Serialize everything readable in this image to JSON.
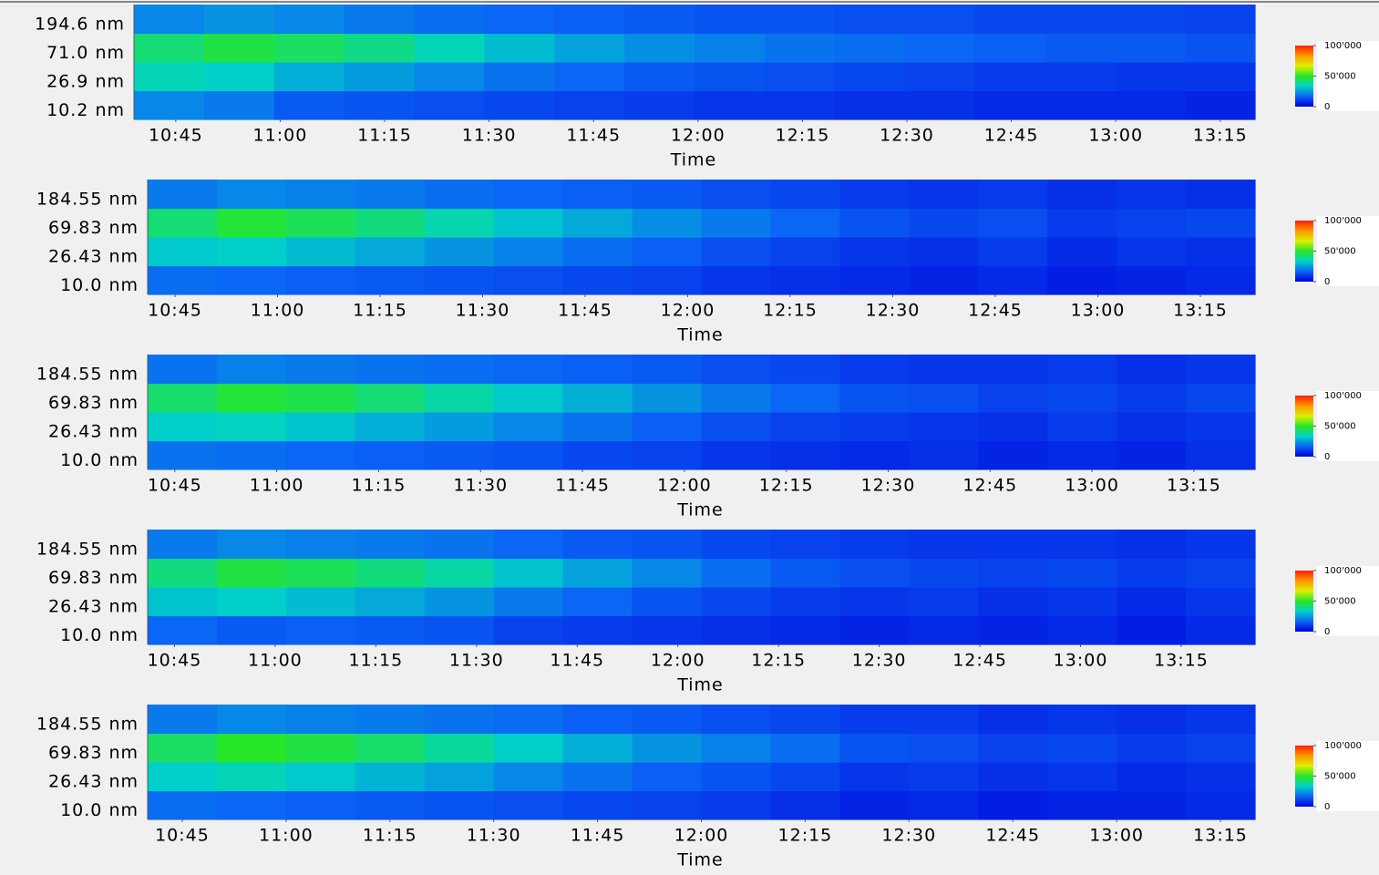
{
  "chart_data": [
    {
      "type": "heatmap",
      "xlabel": "Time",
      "xlim": [
        "10:39",
        "13:20"
      ],
      "xticks": [
        "10:45",
        "11:00",
        "11:15",
        "11:30",
        "11:45",
        "12:00",
        "12:15",
        "12:30",
        "12:45",
        "13:00",
        "13:15"
      ],
      "categories": [
        "10.2 nm",
        "26.9 nm",
        "71.0 nm",
        "194.6 nm"
      ],
      "values": [
        [
          22000,
          20000,
          15000,
          14000,
          13000,
          12000,
          11000,
          10000,
          9000,
          9000,
          8000,
          8000,
          7000,
          7000,
          7000,
          6000
        ],
        [
          35000,
          33000,
          28000,
          25000,
          22000,
          19000,
          17000,
          15000,
          14000,
          13000,
          12000,
          11000,
          10000,
          10000,
          9000,
          9000
        ],
        [
          42000,
          47000,
          44000,
          40000,
          35000,
          30000,
          26000,
          23000,
          21000,
          19000,
          18000,
          17000,
          16000,
          15000,
          15000,
          14000
        ],
        [
          22000,
          24000,
          22000,
          20000,
          18000,
          17000,
          16000,
          15000,
          14000,
          14000,
          13000,
          13000,
          12000,
          12000,
          12000,
          11000
        ]
      ],
      "clim": [
        0,
        100000
      ],
      "cticks": [
        {
          "value": 100000,
          "label": "100'000"
        },
        {
          "value": 50000,
          "label": "50'000"
        },
        0
      ],
      "colormap": [
        "#0000dc",
        "#0a64f5",
        "#00d2c8",
        "#28e628",
        "#dcf000",
        "#ff9600",
        "#ff1e00"
      ]
    },
    {
      "type": "heatmap",
      "xlabel": "Time",
      "xlim": [
        "10:41",
        "13:23"
      ],
      "xticks": [
        "10:45",
        "11:00",
        "11:15",
        "11:30",
        "11:45",
        "12:00",
        "12:15",
        "12:30",
        "12:45",
        "13:00",
        "13:15"
      ],
      "categories": [
        "10.0 nm",
        "26.43 nm",
        "69.83 nm",
        "184.55 nm"
      ],
      "values": [
        [
          18000,
          17000,
          16000,
          15000,
          14000,
          13000,
          12000,
          11000,
          9000,
          8000,
          7000,
          6000,
          7000,
          5000,
          6000,
          7000
        ],
        [
          32000,
          33000,
          30000,
          27000,
          24000,
          21000,
          18000,
          16000,
          13000,
          11000,
          9000,
          8000,
          10000,
          7000,
          9000,
          8000
        ],
        [
          42000,
          48000,
          45000,
          41000,
          36000,
          31000,
          27000,
          23000,
          20000,
          17000,
          14000,
          12000,
          13000,
          10000,
          11000,
          12000
        ],
        [
          20000,
          22000,
          21000,
          20000,
          18000,
          17000,
          16000,
          15000,
          13000,
          12000,
          10000,
          9000,
          10000,
          8000,
          9000,
          8000
        ]
      ],
      "clim": [
        0,
        100000
      ],
      "cticks": [
        {
          "value": 100000,
          "label": "100'000"
        },
        {
          "value": 50000,
          "label": "50'000"
        },
        0
      ],
      "colormap": [
        "#0000dc",
        "#0a64f5",
        "#00d2c8",
        "#28e628",
        "#dcf000",
        "#ff9600",
        "#ff1e00"
      ]
    },
    {
      "type": "heatmap",
      "xlabel": "Time",
      "xlim": [
        "10:41",
        "13:24"
      ],
      "xticks": [
        "10:45",
        "11:00",
        "11:15",
        "11:30",
        "11:45",
        "12:00",
        "12:15",
        "12:30",
        "12:45",
        "13:00",
        "13:15"
      ],
      "categories": [
        "10.0 nm",
        "26.43 nm",
        "69.83 nm",
        "184.55 nm"
      ],
      "values": [
        [
          19000,
          18000,
          17000,
          16000,
          15000,
          14000,
          12000,
          11000,
          9000,
          8000,
          7000,
          8000,
          6000,
          7000,
          6000,
          8000
        ],
        [
          33000,
          34000,
          31000,
          28000,
          25000,
          22000,
          19000,
          16000,
          13000,
          11000,
          10000,
          9000,
          8000,
          10000,
          8000,
          9000
        ],
        [
          43000,
          48000,
          46000,
          42000,
          37000,
          32000,
          28000,
          24000,
          20000,
          17000,
          14000,
          13000,
          11000,
          12000,
          10000,
          12000
        ],
        [
          19000,
          21000,
          20000,
          19000,
          18000,
          17000,
          16000,
          15000,
          13000,
          12000,
          10000,
          9000,
          9000,
          10000,
          8000,
          9000
        ]
      ],
      "clim": [
        0,
        100000
      ],
      "cticks": [
        {
          "value": 100000,
          "label": "100'000"
        },
        {
          "value": 50000,
          "label": "50'000"
        },
        0
      ],
      "colormap": [
        "#0000dc",
        "#0a64f5",
        "#00d2c8",
        "#28e628",
        "#dcf000",
        "#ff9600",
        "#ff1e00"
      ]
    },
    {
      "type": "heatmap",
      "xlabel": "Time",
      "xlim": [
        "10:41",
        "13:26"
      ],
      "xticks": [
        "10:45",
        "11:00",
        "11:15",
        "11:30",
        "11:45",
        "12:00",
        "12:15",
        "12:30",
        "12:45",
        "13:00",
        "13:15"
      ],
      "categories": [
        "10.0 nm",
        "26.43 nm",
        "69.83 nm",
        "184.55 nm"
      ],
      "values": [
        [
          17000,
          15000,
          16000,
          15000,
          14000,
          11000,
          10000,
          9000,
          8000,
          7000,
          6000,
          7000,
          6000,
          7000,
          5000,
          7000
        ],
        [
          31000,
          33000,
          30000,
          27000,
          24000,
          20000,
          17000,
          14000,
          12000,
          10000,
          9000,
          10000,
          8000,
          9000,
          7000,
          9000
        ],
        [
          41000,
          47000,
          45000,
          41000,
          37000,
          31000,
          26000,
          22000,
          18000,
          15000,
          13000,
          12000,
          11000,
          12000,
          10000,
          11000
        ],
        [
          20000,
          22000,
          21000,
          20000,
          19000,
          17000,
          15000,
          14000,
          12000,
          11000,
          10000,
          9000,
          9000,
          9000,
          8000,
          9000
        ]
      ],
      "clim": [
        0,
        100000
      ],
      "cticks": [
        {
          "value": 100000,
          "label": "100'000"
        },
        {
          "value": 50000,
          "label": "50'000"
        },
        0
      ],
      "colormap": [
        "#0000dc",
        "#0a64f5",
        "#00d2c8",
        "#28e628",
        "#dcf000",
        "#ff9600",
        "#ff1e00"
      ]
    },
    {
      "type": "heatmap",
      "xlabel": "Time",
      "xlim": [
        "10:40",
        "13:20"
      ],
      "xticks": [
        "10:45",
        "11:00",
        "11:15",
        "11:30",
        "11:45",
        "12:00",
        "12:15",
        "12:30",
        "12:45",
        "13:00",
        "13:15"
      ],
      "categories": [
        "10.0 nm",
        "26.43 nm",
        "69.83 nm",
        "184.55 nm"
      ],
      "values": [
        [
          18000,
          17000,
          16000,
          15000,
          14000,
          13000,
          12000,
          11000,
          10000,
          8000,
          6000,
          7000,
          5000,
          6000,
          6000,
          7000
        ],
        [
          33000,
          35000,
          32000,
          29000,
          26000,
          22000,
          19000,
          16000,
          14000,
          12000,
          9000,
          10000,
          8000,
          9000,
          7000,
          8000
        ],
        [
          44000,
          50000,
          47000,
          43000,
          38000,
          33000,
          28000,
          24000,
          21000,
          18000,
          14000,
          13000,
          11000,
          12000,
          10000,
          11000
        ],
        [
          20000,
          22000,
          21000,
          20000,
          19000,
          18000,
          16000,
          15000,
          13000,
          12000,
          10000,
          10000,
          8000,
          9000,
          8000,
          9000
        ]
      ],
      "clim": [
        0,
        100000
      ],
      "cticks": [
        {
          "value": 100000,
          "label": "100'000"
        },
        {
          "value": 50000,
          "label": "50'000"
        },
        0
      ],
      "colormap": [
        "#0000dc",
        "#0a64f5",
        "#00d2c8",
        "#28e628",
        "#dcf000",
        "#ff9600",
        "#ff1e00"
      ]
    }
  ]
}
